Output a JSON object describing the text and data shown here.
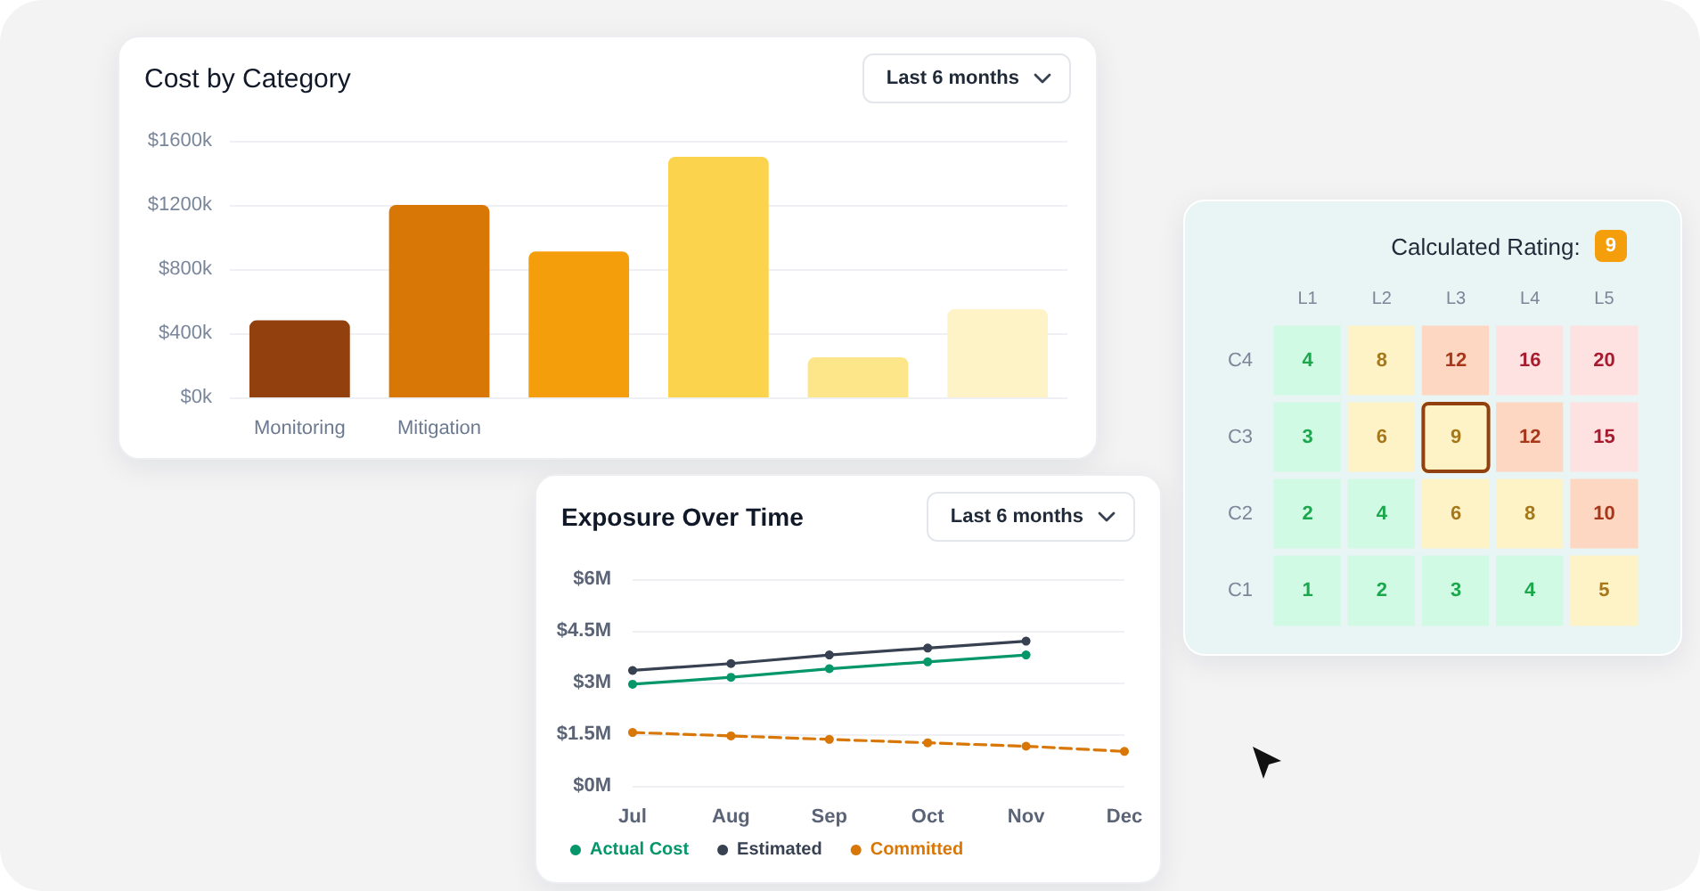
{
  "chart_data": [
    {
      "type": "bar",
      "title": "Cost by Category",
      "annotations": [
        "Last 6 months"
      ],
      "categories": [
        "Monitoring",
        "Mitigation",
        null,
        null,
        null,
        null
      ],
      "values": [
        480,
        1200,
        910,
        1500,
        250,
        550
      ],
      "colors": [
        "#92400e",
        "#d97706",
        "#f59e0b",
        "#fcd34d",
        "#fde68a",
        "#fef3c7"
      ],
      "ylim": [
        0,
        1600
      ],
      "yticks": [
        {
          "value": 0,
          "label": "$0k"
        },
        {
          "value": 400,
          "label": "$400k"
        },
        {
          "value": 800,
          "label": "$800k"
        },
        {
          "value": 1200,
          "label": "$1200k"
        },
        {
          "value": 1600,
          "label": "$1600k"
        }
      ],
      "grid": "y"
    },
    {
      "type": "line",
      "title": "Exposure Over Time",
      "annotations": [
        "Last 6 months"
      ],
      "categories": [
        "Jul",
        "Aug",
        "Sep",
        "Oct",
        "Nov",
        "Dec"
      ],
      "series": [
        {
          "name": "Actual Cost",
          "color": "#059669",
          "values": [
            2.95,
            3.15,
            3.4,
            3.6,
            3.8,
            null
          ]
        },
        {
          "name": "Estimated",
          "color": "#374151",
          "values": [
            3.35,
            3.55,
            3.8,
            4.0,
            4.2,
            null
          ]
        },
        {
          "name": "Committed",
          "color": "#d97706",
          "line_style": "dashed",
          "values": [
            1.55,
            1.45,
            1.35,
            1.25,
            1.15,
            1.0
          ]
        }
      ],
      "ylim": [
        0,
        6
      ],
      "yticks": [
        {
          "value": 0,
          "label": "$0M"
        },
        {
          "value": 1.5,
          "label": "$1.5M"
        },
        {
          "value": 3,
          "label": "$3M"
        },
        {
          "value": 4.5,
          "label": "$4.5M"
        },
        {
          "value": 6,
          "label": "$6M"
        }
      ],
      "grid": "y",
      "legend": "bottom left",
      "marker": "circle",
      "line_style": "solid"
    },
    {
      "type": "heatmap",
      "categories": [
        "L1",
        "L2",
        "L3",
        "L4",
        "L5"
      ],
      "y_categories": [
        "C4",
        "C3",
        "C2",
        "C1"
      ],
      "cells": [
        [
          4,
          8,
          12,
          16,
          20
        ],
        [
          3,
          6,
          9,
          12,
          15
        ],
        [
          2,
          4,
          6,
          8,
          10
        ],
        [
          1,
          2,
          3,
          4,
          5
        ]
      ],
      "colors": [
        [
          "#d1fae5",
          "#fef3c7",
          "#fed7c3",
          "#fee2e2",
          "#fee2e2"
        ],
        [
          "#d1fae5",
          "#fef3c7",
          "#fef3c7",
          "#fed7c3",
          "#fee2e2"
        ],
        [
          "#d1fae5",
          "#d1fae5",
          "#fef3c7",
          "#fef3c7",
          "#fed7c3"
        ],
        [
          "#d1fae5",
          "#d1fae5",
          "#d1fae5",
          "#d1fae5",
          "#fef3c7"
        ]
      ],
      "data_labels": true,
      "annotations": [
        "Calculated Rating: 9"
      ]
    }
  ]
}
